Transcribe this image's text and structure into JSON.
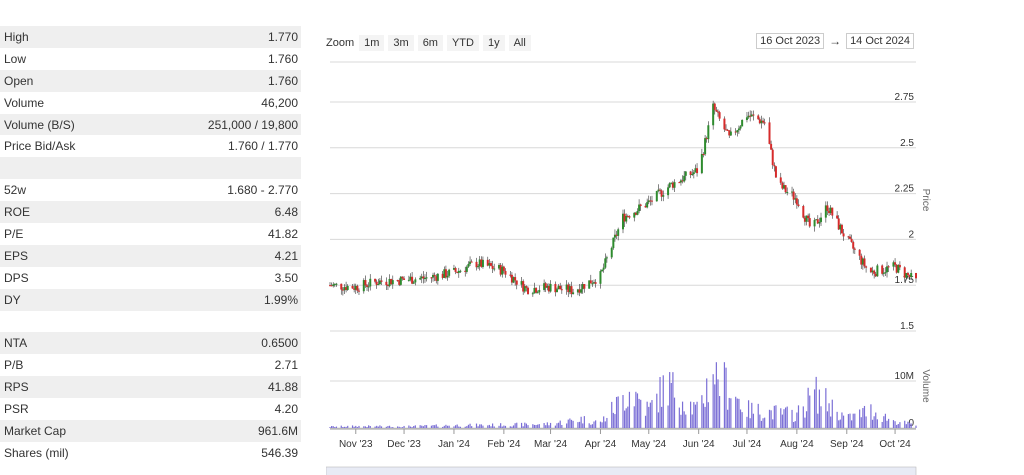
{
  "stats": [
    {
      "label": "High",
      "value": "1.770",
      "shaded": true
    },
    {
      "label": "Low",
      "value": "1.760",
      "shaded": false
    },
    {
      "label": "Open",
      "value": "1.760",
      "shaded": true
    },
    {
      "label": "Volume",
      "value": "46,200",
      "shaded": false
    },
    {
      "label": "Volume (B/S)",
      "value": "251,000 / 19,800",
      "shaded": true
    },
    {
      "label": "Price Bid/Ask",
      "value": "1.760 / 1.770",
      "shaded": false
    },
    {
      "label": "",
      "value": "",
      "shaded": true
    },
    {
      "label": "52w",
      "value": "1.680 - 2.770",
      "shaded": false
    },
    {
      "label": "ROE",
      "value": "6.48",
      "shaded": true
    },
    {
      "label": "P/E",
      "value": "41.82",
      "shaded": false
    },
    {
      "label": "EPS",
      "value": "4.21",
      "shaded": true
    },
    {
      "label": "DPS",
      "value": "3.50",
      "shaded": false
    },
    {
      "label": "DY",
      "value": "1.99%",
      "shaded": true
    },
    {
      "label": "",
      "value": "",
      "shaded": false
    },
    {
      "label": "NTA",
      "value": "0.6500",
      "shaded": true
    },
    {
      "label": "P/B",
      "value": "2.71",
      "shaded": false
    },
    {
      "label": "RPS",
      "value": "41.88",
      "shaded": true
    },
    {
      "label": "PSR",
      "value": "4.20",
      "shaded": false
    },
    {
      "label": "Market Cap",
      "value": "961.6M",
      "shaded": true
    },
    {
      "label": "Shares (mil)",
      "value": "546.39",
      "shaded": false
    }
  ],
  "range_selector": {
    "zoom_label": "Zoom",
    "buttons": [
      "1m",
      "3m",
      "6m",
      "YTD",
      "1y",
      "All"
    ],
    "from_date": "16 Oct 2023",
    "arrow": "→",
    "to_date": "14 Oct 2024"
  },
  "chart_data": {
    "type": "candlestick",
    "price_axis": {
      "title": "Price",
      "ticks": [
        "1.5",
        "1.75",
        "2",
        "2.25",
        "2.5",
        "2.75"
      ],
      "tick_values": [
        1.5,
        1.75,
        2.0,
        2.25,
        2.5,
        2.75
      ],
      "range": [
        1.5,
        2.75
      ]
    },
    "volume_axis": {
      "title": "Volume",
      "ticks": [
        "0",
        "10M"
      ],
      "tick_values": [
        0,
        10000000
      ],
      "range": [
        0,
        14000000
      ]
    },
    "x_axis": {
      "start": "2023-10-16",
      "end": "2024-10-14",
      "labels": [
        {
          "label": "Nov '23",
          "date": "2023-11-01"
        },
        {
          "label": "Dec '23",
          "date": "2023-12-01"
        },
        {
          "label": "Jan '24",
          "date": "2024-01-01"
        },
        {
          "label": "Feb '24",
          "date": "2024-02-01"
        },
        {
          "label": "Mar '24",
          "date": "2024-03-01"
        },
        {
          "label": "Apr '24",
          "date": "2024-04-01"
        },
        {
          "label": "May '24",
          "date": "2024-05-01"
        },
        {
          "label": "Jun '24",
          "date": "2024-06-01"
        },
        {
          "label": "Jul '24",
          "date": "2024-07-01"
        },
        {
          "label": "Aug '24",
          "date": "2024-08-01"
        },
        {
          "label": "Sep '24",
          "date": "2024-09-01"
        },
        {
          "label": "Oct '24",
          "date": "2024-10-01"
        }
      ]
    },
    "price_series": [
      {
        "date": "2023-10-16",
        "close": 1.75
      },
      {
        "date": "2023-11-01",
        "close": 1.74
      },
      {
        "date": "2023-11-15",
        "close": 1.77
      },
      {
        "date": "2023-12-01",
        "close": 1.78
      },
      {
        "date": "2023-12-15",
        "close": 1.79
      },
      {
        "date": "2024-01-01",
        "close": 1.82
      },
      {
        "date": "2024-01-15",
        "close": 1.87
      },
      {
        "date": "2024-02-01",
        "close": 1.83
      },
      {
        "date": "2024-02-15",
        "close": 1.73
      },
      {
        "date": "2024-03-01",
        "close": 1.74
      },
      {
        "date": "2024-03-15",
        "close": 1.72
      },
      {
        "date": "2024-04-01",
        "close": 1.8
      },
      {
        "date": "2024-04-15",
        "close": 2.12
      },
      {
        "date": "2024-05-01",
        "close": 2.2
      },
      {
        "date": "2024-05-15",
        "close": 2.3
      },
      {
        "date": "2024-06-01",
        "close": 2.38
      },
      {
        "date": "2024-06-10",
        "close": 2.72
      },
      {
        "date": "2024-06-20",
        "close": 2.55
      },
      {
        "date": "2024-07-01",
        "close": 2.68
      },
      {
        "date": "2024-07-12",
        "close": 2.64
      },
      {
        "date": "2024-07-20",
        "close": 2.3
      },
      {
        "date": "2024-08-01",
        "close": 2.22
      },
      {
        "date": "2024-08-10",
        "close": 2.05
      },
      {
        "date": "2024-08-20",
        "close": 2.18
      },
      {
        "date": "2024-09-01",
        "close": 2.0
      },
      {
        "date": "2024-09-15",
        "close": 1.82
      },
      {
        "date": "2024-10-01",
        "close": 1.85
      },
      {
        "date": "2024-10-14",
        "close": 1.77
      }
    ],
    "volume_series": [
      {
        "date": "2023-10-16",
        "volume": 300000
      },
      {
        "date": "2023-11-01",
        "volume": 400000
      },
      {
        "date": "2023-12-01",
        "volume": 350000
      },
      {
        "date": "2024-01-01",
        "volume": 600000
      },
      {
        "date": "2024-02-01",
        "volume": 700000
      },
      {
        "date": "2024-03-01",
        "volume": 900000
      },
      {
        "date": "2024-03-20",
        "volume": 2000000
      },
      {
        "date": "2024-04-01",
        "volume": 1200000
      },
      {
        "date": "2024-04-20",
        "volume": 8600000
      },
      {
        "date": "2024-05-01",
        "volume": 4000000
      },
      {
        "date": "2024-05-12",
        "volume": 9800000
      },
      {
        "date": "2024-06-01",
        "volume": 3500000
      },
      {
        "date": "2024-06-10",
        "volume": 13300000
      },
      {
        "date": "2024-07-01",
        "volume": 4000000
      },
      {
        "date": "2024-08-01",
        "volume": 3000000
      },
      {
        "date": "2024-08-12",
        "volume": 7900000
      },
      {
        "date": "2024-09-01",
        "volume": 2000000
      },
      {
        "date": "2024-09-15",
        "volume": 4000000
      },
      {
        "date": "2024-10-01",
        "volume": 1500000
      },
      {
        "date": "2024-10-14",
        "volume": 600000
      }
    ],
    "colors": {
      "up": "#2e8b2e",
      "down": "#d62b2b",
      "volume": "#7b6fd6",
      "grid": "#d8d8d8"
    }
  }
}
